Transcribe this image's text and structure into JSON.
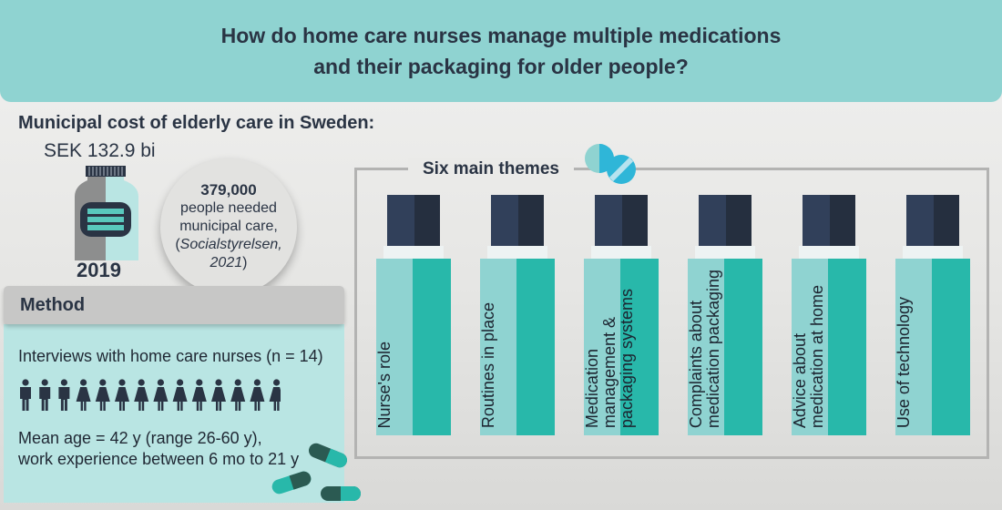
{
  "header": {
    "line1": "How do home care nurses manage multiple medications",
    "line2": "and their packaging for older people?"
  },
  "cost": {
    "title": "Municipal cost of elderly care in Sweden:",
    "amount": "SEK 132.9 bi",
    "year": "2019"
  },
  "circle": {
    "number": "379,000",
    "line1": "people needed",
    "line2": "municipal care,",
    "source_open": "(",
    "source": "Socialstyrelsen,",
    "year": "2021",
    "source_close": ")"
  },
  "method": {
    "title": "Method",
    "interviews": "Interviews with home care nurses (n = 14)",
    "people": {
      "male": 3,
      "female": 11,
      "male_color": "#2a3444",
      "female_color": "#2a3444"
    },
    "mean_age_line1": "Mean age = 42 y (range 26-60 y),",
    "mean_age_line2": "work experience between 6 mo to 21 y"
  },
  "themes": {
    "title": "Six main themes",
    "items": [
      {
        "lines": [
          "Nurse's role"
        ]
      },
      {
        "lines": [
          "Routines in place"
        ]
      },
      {
        "lines": [
          "Medication",
          "management &",
          "packaging systems"
        ]
      },
      {
        "lines": [
          "Complaints about",
          "medication packaging"
        ]
      },
      {
        "lines": [
          "Advice about",
          "medication at home"
        ]
      },
      {
        "lines": [
          "Use of technology"
        ]
      }
    ]
  },
  "colors": {
    "header_bg": "#8fd3d1",
    "teal_light": "#8fd3d1",
    "teal_dark": "#28b8aa",
    "cap_dark": "#2a3444",
    "panel": "#b9e5e3"
  },
  "icons": {
    "bottle": "medicine-bottle-icon",
    "tablets": "tablets-icon",
    "capsules": "capsules-icon",
    "people": "person-icon"
  }
}
